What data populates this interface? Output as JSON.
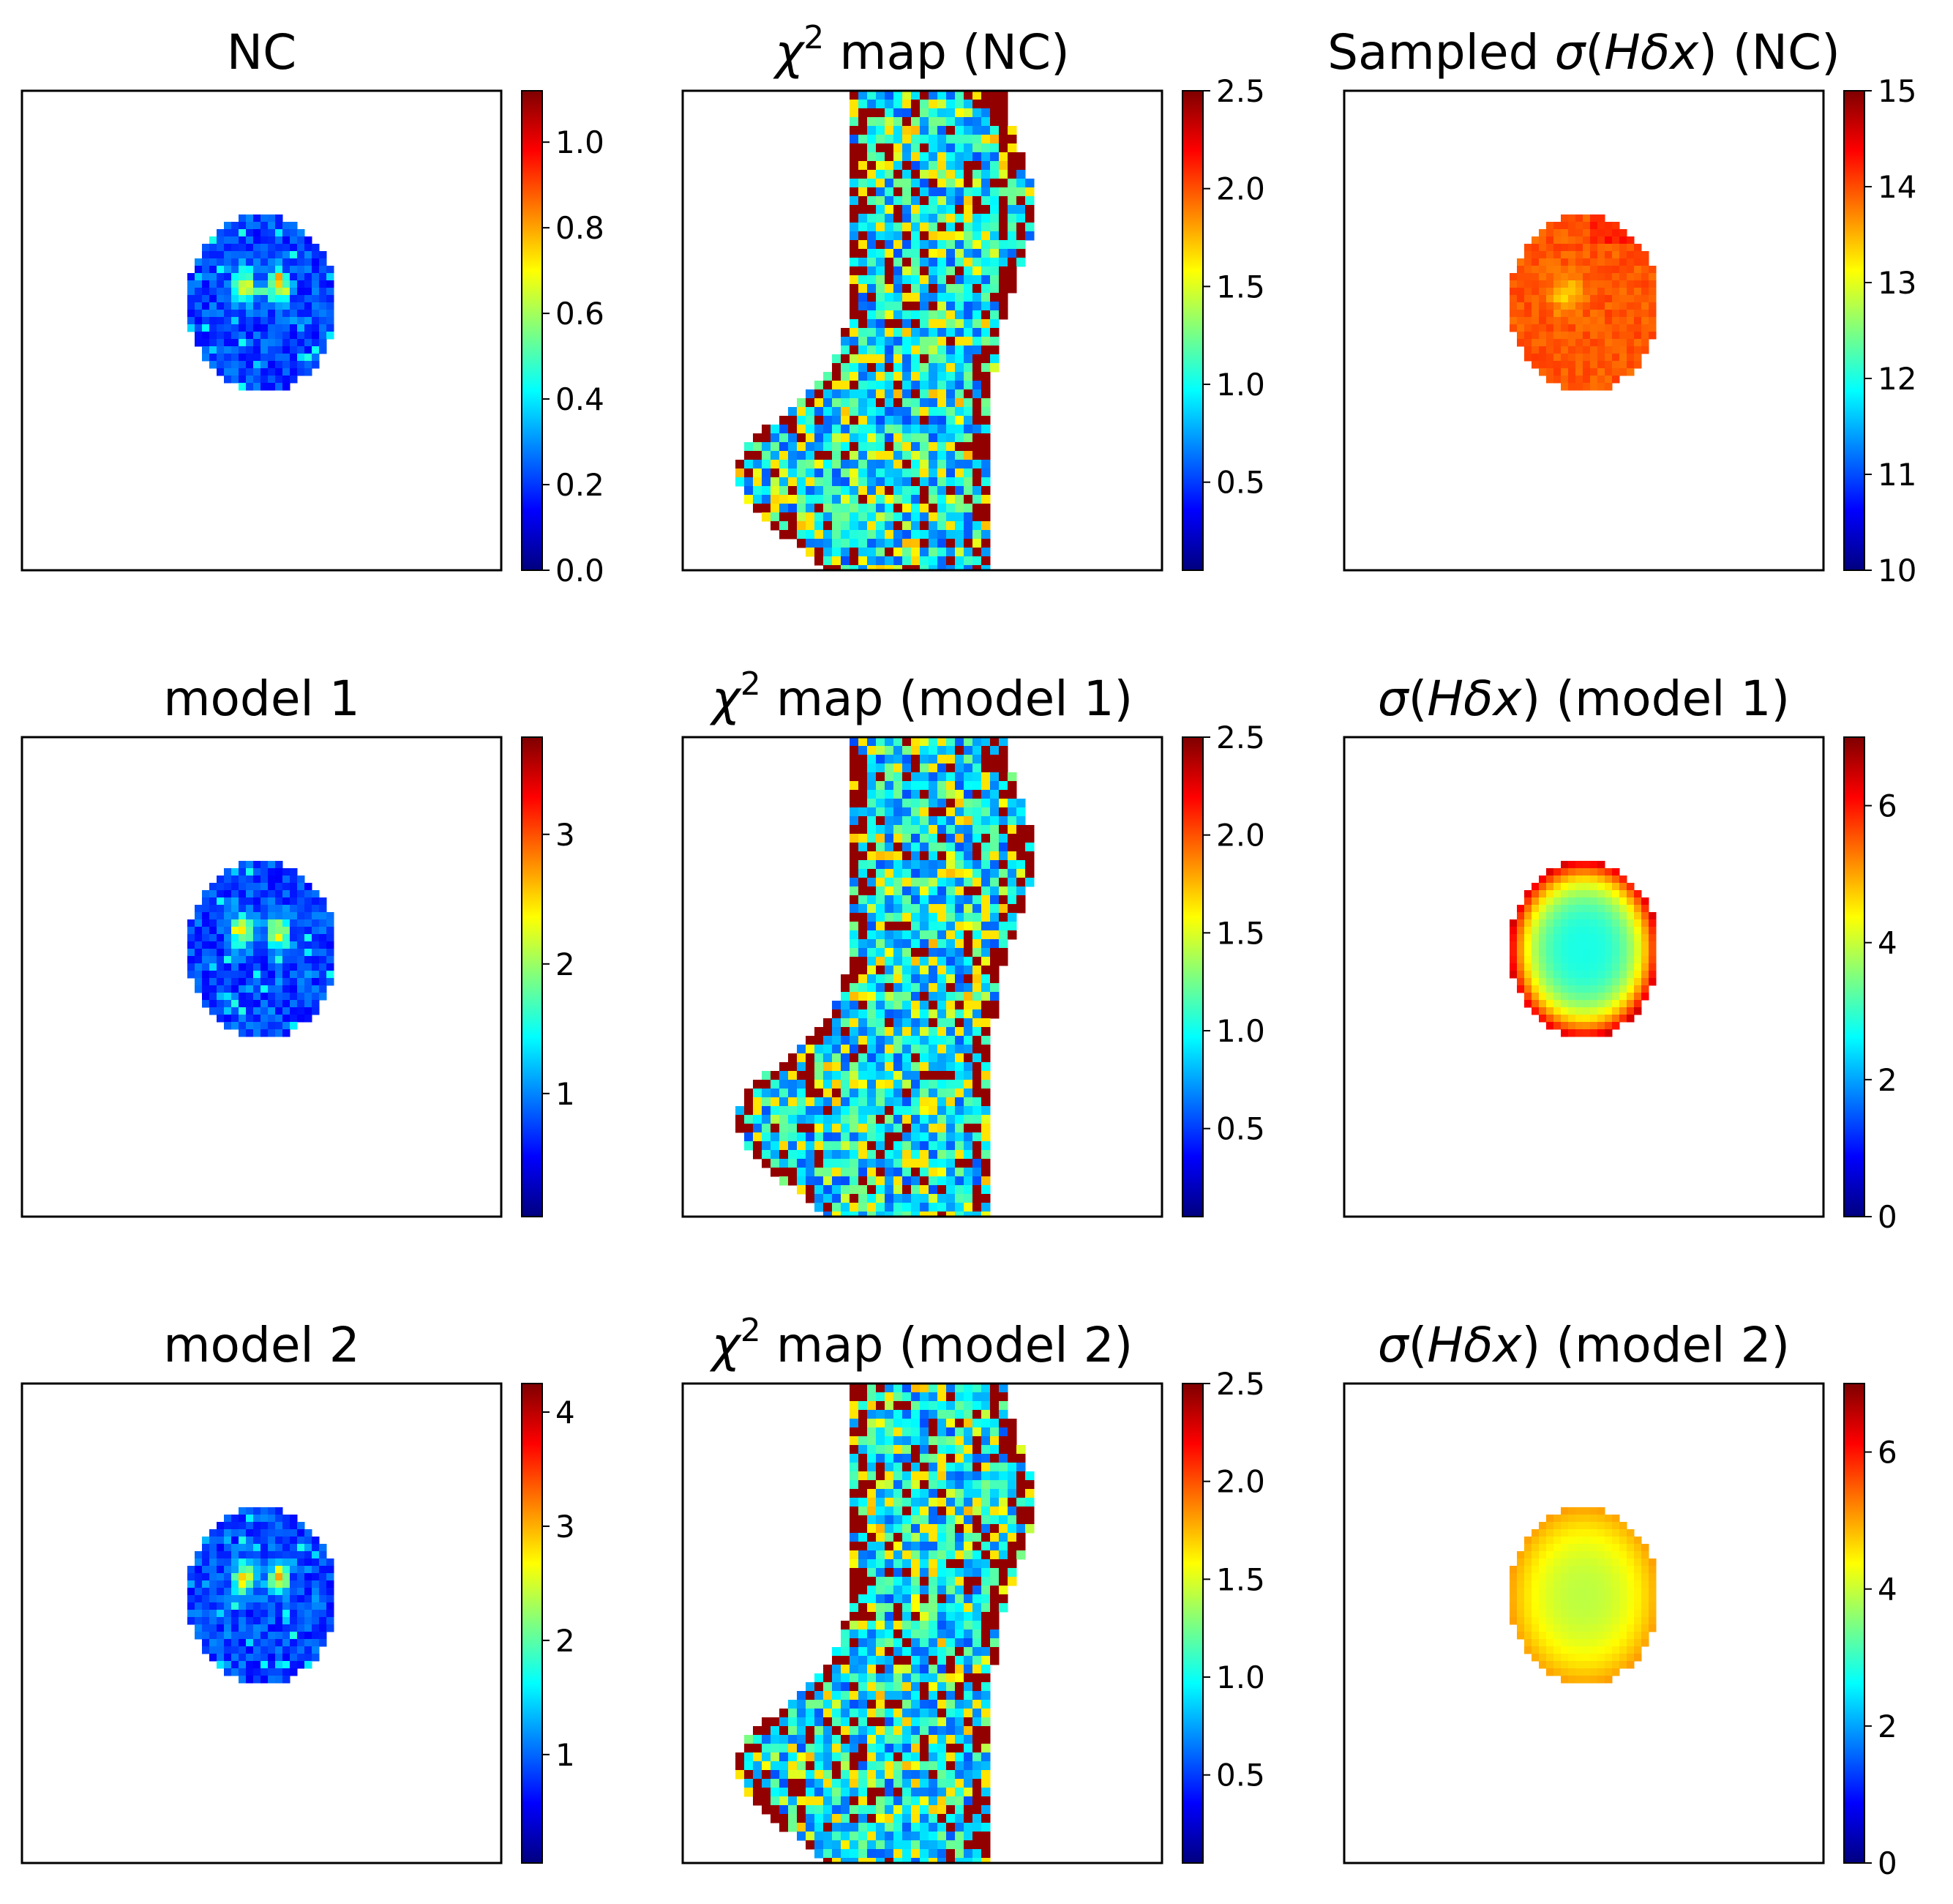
{
  "figure": {
    "colormap": "jet",
    "jet_stops": [
      "#00007f",
      "#0000ff",
      "#007fff",
      "#00ffff",
      "#7fff7f",
      "#ffff00",
      "#ff7f00",
      "#ff0000",
      "#7f0000"
    ],
    "frame_color": "#000000",
    "background": "#ffffff"
  },
  "chart_data": [
    {
      "type": "heatmap",
      "row": 1,
      "col": 1,
      "shape": "ellipse-noisy",
      "title": "NC",
      "title_math": false,
      "colorbar": {
        "min": 0.0,
        "max": 1.12,
        "ticks": [
          0.0,
          0.2,
          0.4,
          0.6,
          0.8,
          1.0
        ],
        "tick_labels": [
          "0.0",
          "0.2",
          "0.4",
          "0.6",
          "0.8",
          "1.0"
        ]
      }
    },
    {
      "type": "heatmap",
      "row": 1,
      "col": 2,
      "shape": "band",
      "title": "map (NC)",
      "title_math": "chi2",
      "colorbar": {
        "min": 0.05,
        "max": 2.5,
        "ticks": [
          0.5,
          1.0,
          1.5,
          2.0,
          2.5
        ],
        "tick_labels": [
          "0.5",
          "1.0",
          "1.5",
          "2.0",
          "2.5"
        ]
      }
    },
    {
      "type": "heatmap",
      "row": 1,
      "col": 3,
      "shape": "ellipse-smooth-nc",
      "title": "(NC)",
      "title_math": "sampled-sigma",
      "title_prefix": "Sampled",
      "colorbar": {
        "min": 10,
        "max": 15,
        "ticks": [
          10,
          11,
          12,
          13,
          14,
          15
        ],
        "tick_labels": [
          "10",
          "11",
          "12",
          "13",
          "14",
          "15"
        ]
      }
    },
    {
      "type": "heatmap",
      "row": 2,
      "col": 1,
      "shape": "ellipse-noisy",
      "title": "model 1",
      "title_math": false,
      "colorbar": {
        "min": 0.05,
        "max": 3.75,
        "ticks": [
          1,
          2,
          3
        ],
        "tick_labels": [
          "1",
          "2",
          "3"
        ]
      }
    },
    {
      "type": "heatmap",
      "row": 2,
      "col": 2,
      "shape": "band",
      "title": "map (model 1)",
      "title_math": "chi2",
      "colorbar": {
        "min": 0.05,
        "max": 2.5,
        "ticks": [
          0.5,
          1.0,
          1.5,
          2.0,
          2.5
        ],
        "tick_labels": [
          "0.5",
          "1.0",
          "1.5",
          "2.0",
          "2.5"
        ]
      }
    },
    {
      "type": "heatmap",
      "row": 2,
      "col": 3,
      "shape": "ellipse-radial-1",
      "title": "(model 1)",
      "title_math": "sigma",
      "colorbar": {
        "min": 0,
        "max": 7,
        "ticks": [
          0,
          2,
          4,
          6
        ],
        "tick_labels": [
          "0",
          "2",
          "4",
          "6"
        ]
      }
    },
    {
      "type": "heatmap",
      "row": 3,
      "col": 1,
      "shape": "ellipse-noisy",
      "title": "model 2",
      "title_math": false,
      "colorbar": {
        "min": 0.05,
        "max": 4.25,
        "ticks": [
          1,
          2,
          3,
          4
        ],
        "tick_labels": [
          "1",
          "2",
          "3",
          "4"
        ]
      }
    },
    {
      "type": "heatmap",
      "row": 3,
      "col": 2,
      "shape": "band",
      "title": "map (model 2)",
      "title_math": "chi2",
      "colorbar": {
        "min": 0.05,
        "max": 2.5,
        "ticks": [
          0.5,
          1.0,
          1.5,
          2.0,
          2.5
        ],
        "tick_labels": [
          "0.5",
          "1.0",
          "1.5",
          "2.0",
          "2.5"
        ]
      }
    },
    {
      "type": "heatmap",
      "row": 3,
      "col": 3,
      "shape": "ellipse-radial-2",
      "title": "(model 2)",
      "title_math": "sigma",
      "colorbar": {
        "min": 0,
        "max": 7,
        "ticks": [
          0,
          2,
          4,
          6
        ],
        "tick_labels": [
          "0",
          "2",
          "4",
          "6"
        ]
      }
    }
  ]
}
